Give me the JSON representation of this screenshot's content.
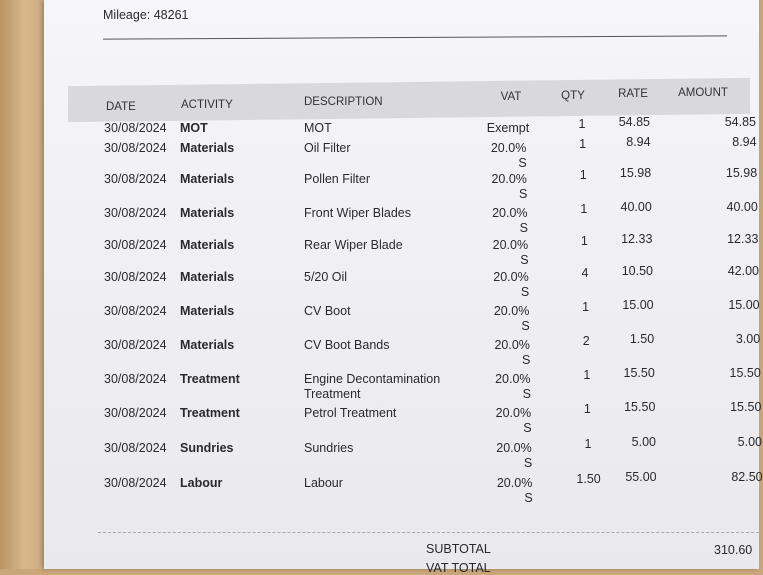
{
  "header": {
    "mileage": "Mileage: 48261"
  },
  "table": {
    "columns": [
      "DATE",
      "ACTIVITY",
      "DESCRIPTION",
      "VAT",
      "QTY",
      "RATE",
      "AMOUNT"
    ],
    "rows": [
      {
        "date": "30/08/2024",
        "activity": "MOT",
        "description": "MOT",
        "vat": "Exempt",
        "qty": "1",
        "rate": "54.85",
        "amount": "54.85"
      },
      {
        "date": "30/08/2024",
        "activity": "Materials",
        "description": "Oil Filter",
        "vat": "20.0%",
        "vat_code": "S",
        "qty": "1",
        "rate": "8.94",
        "amount": "8.94"
      },
      {
        "date": "30/08/2024",
        "activity": "Materials",
        "description": "Pollen Filter",
        "vat": "20.0%",
        "vat_code": "S",
        "qty": "1",
        "rate": "15.98",
        "amount": "15.98"
      },
      {
        "date": "30/08/2024",
        "activity": "Materials",
        "description": "Front Wiper Blades",
        "vat": "20.0%",
        "vat_code": "S",
        "qty": "1",
        "rate": "40.00",
        "amount": "40.00"
      },
      {
        "date": "30/08/2024",
        "activity": "Materials",
        "description": "Rear Wiper Blade",
        "vat": "20.0%",
        "vat_code": "S",
        "qty": "1",
        "rate": "12.33",
        "amount": "12.33"
      },
      {
        "date": "30/08/2024",
        "activity": "Materials",
        "description": "5/20 Oil",
        "vat": "20.0%",
        "vat_code": "S",
        "qty": "4",
        "rate": "10.50",
        "amount": "42.00"
      },
      {
        "date": "30/08/2024",
        "activity": "Materials",
        "description": "CV Boot",
        "vat": "20.0%",
        "vat_code": "S",
        "qty": "1",
        "rate": "15.00",
        "amount": "15.00"
      },
      {
        "date": "30/08/2024",
        "activity": "Materials",
        "description": "CV Boot Bands",
        "vat": "20.0%",
        "vat_code": "S",
        "qty": "2",
        "rate": "1.50",
        "amount": "3.00"
      },
      {
        "date": "30/08/2024",
        "activity": "Treatment",
        "description": "Engine Decontamination Treatment",
        "vat": "20.0%",
        "vat_code": "S",
        "qty": "1",
        "rate": "15.50",
        "amount": "15.50"
      },
      {
        "date": "30/08/2024",
        "activity": "Treatment",
        "description": "Petrol Treatment",
        "vat": "20.0%",
        "vat_code": "S",
        "qty": "1",
        "rate": "15.50",
        "amount": "15.50"
      },
      {
        "date": "30/08/2024",
        "activity": "Sundries",
        "description": "Sundries",
        "vat": "20.0%",
        "vat_code": "S",
        "qty": "1",
        "rate": "5.00",
        "amount": "5.00"
      },
      {
        "date": "30/08/2024",
        "activity": "Labour",
        "description": "Labour",
        "vat": "20.0%",
        "vat_code": "S",
        "qty": "1.50",
        "rate": "55.00",
        "amount": "82.50"
      }
    ]
  },
  "totals": {
    "subtotal_label": "SUBTOTAL",
    "subtotal": "310.60",
    "vat_total_label": "VAT TOTAL"
  }
}
